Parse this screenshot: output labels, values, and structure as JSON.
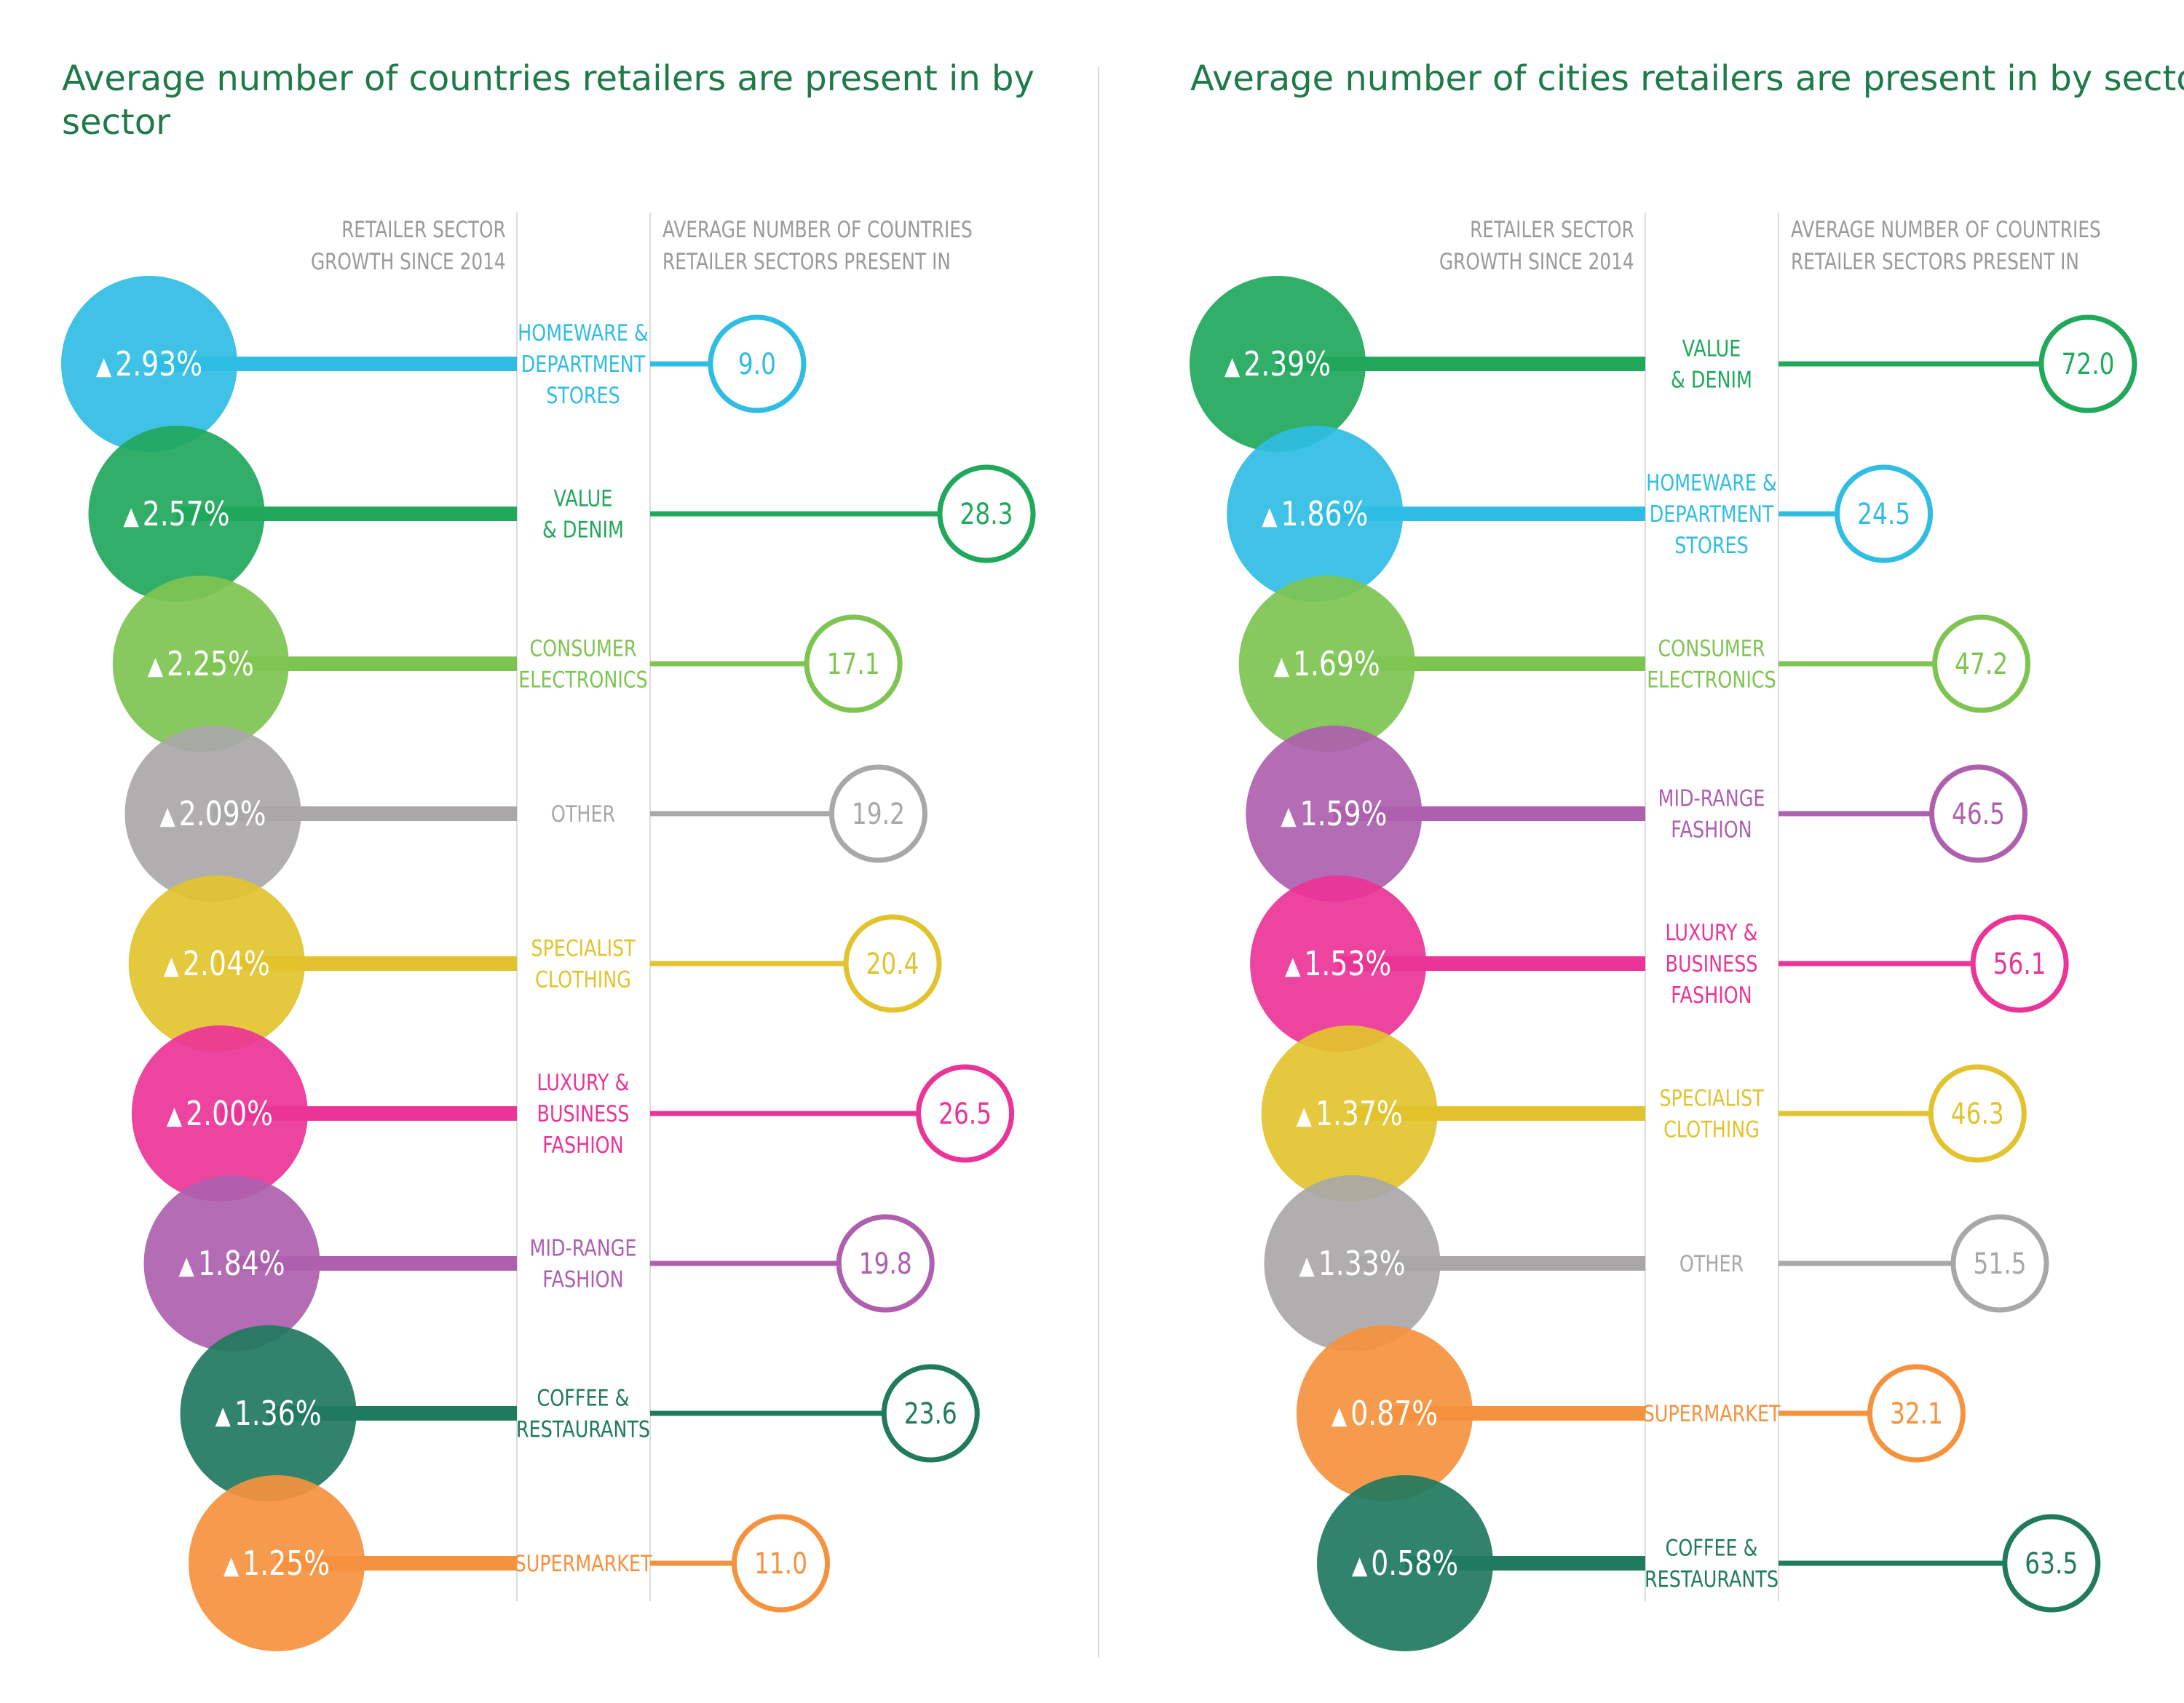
{
  "chart_data": [
    {
      "type": "bar",
      "title": "Average number of countries retailers are present in by sector",
      "growth_header": "RETAILER SECTOR\nGROWTH SINCE 2014",
      "value_header": "AVERAGE NUMBER OF COUNTRIES\nRETAILER SECTORS PRESENT IN",
      "growth_marker": "▲",
      "rows": [
        {
          "sector": "HOMEWARE &\nDEPARTMENT\nSTORES",
          "growth": "2.93%",
          "value": 9.0,
          "value_label": "9.0",
          "color": "#2fbde4"
        },
        {
          "sector": "VALUE\n& DENIM",
          "growth": "2.57%",
          "value": 28.3,
          "value_label": "28.3",
          "color": "#20a85b"
        },
        {
          "sector": "CONSUMER\nELECTRONICS",
          "growth": "2.25%",
          "value": 17.1,
          "value_label": "17.1",
          "color": "#7ec451"
        },
        {
          "sector": "OTHER",
          "growth": "2.09%",
          "value": 19.2,
          "value_label": "19.2",
          "color": "#a9a7a8"
        },
        {
          "sector": "SPECIALIST\nCLOTHING",
          "growth": "2.04%",
          "value": 20.4,
          "value_label": "20.4",
          "color": "#e2c32d"
        },
        {
          "sector": "LUXURY &\nBUSINESS\nFASHION",
          "growth": "2.00%",
          "value": 26.5,
          "value_label": "26.5",
          "color": "#eb3497"
        },
        {
          "sector": "MID-RANGE\nFASHION",
          "growth": "1.84%",
          "value": 19.8,
          "value_label": "19.8",
          "color": "#ae5fae"
        },
        {
          "sector": "COFFEE &\nRESTAURANTS",
          "growth": "1.36%",
          "value": 23.6,
          "value_label": "23.6",
          "color": "#1f7a5e"
        },
        {
          "sector": "SUPERMARKET",
          "growth": "1.25%",
          "value": 11.0,
          "value_label": "11.0",
          "color": "#f5923e"
        }
      ]
    },
    {
      "type": "bar",
      "title": "Average number of cities retailers are present in by sector",
      "growth_header": "RETAILER SECTOR\nGROWTH SINCE 2014",
      "value_header": "AVERAGE NUMBER OF COUNTRIES\nRETAILER SECTORS PRESENT IN",
      "growth_marker": "▲",
      "rows": [
        {
          "sector": "VALUE\n& DENIM",
          "growth": "2.39%",
          "value": 72.0,
          "value_label": "72.0",
          "color": "#20a85b"
        },
        {
          "sector": "HOMEWARE &\nDEPARTMENT\nSTORES",
          "growth": "1.86%",
          "value": 24.5,
          "value_label": "24.5",
          "color": "#2fbde4"
        },
        {
          "sector": "CONSUMER\nELECTRONICS",
          "growth": "1.69%",
          "value": 47.2,
          "value_label": "47.2",
          "color": "#7ec451"
        },
        {
          "sector": "MID-RANGE\nFASHION",
          "growth": "1.59%",
          "value": 46.5,
          "value_label": "46.5",
          "color": "#ae5fae"
        },
        {
          "sector": "LUXURY &\nBUSINESS\nFASHION",
          "growth": "1.53%",
          "value": 56.1,
          "value_label": "56.1",
          "color": "#eb3497"
        },
        {
          "sector": "SPECIALIST\nCLOTHING",
          "growth": "1.37%",
          "value": 46.3,
          "value_label": "46.3",
          "color": "#e2c32d"
        },
        {
          "sector": "OTHER",
          "growth": "1.33%",
          "value": 51.5,
          "value_label": "51.5",
          "color": "#a9a7a8"
        },
        {
          "sector": "SUPERMARKET",
          "growth": "0.87%",
          "value": 32.1,
          "value_label": "32.1",
          "color": "#f5923e"
        },
        {
          "sector": "COFFEE &\nRESTAURANTS",
          "growth": "0.58%",
          "value": 63.5,
          "value_label": "63.5",
          "color": "#1f7a5e"
        }
      ]
    }
  ]
}
